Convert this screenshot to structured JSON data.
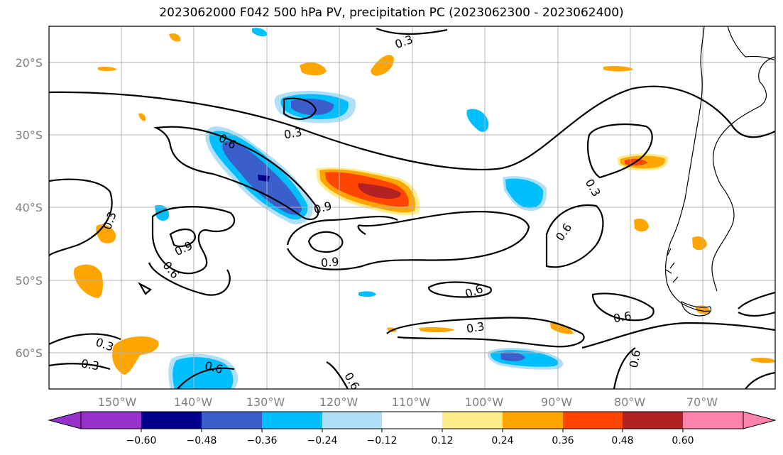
{
  "title": "2023062000 F042 500 hPa PV, precipitation PC (2023062300 - 2023062400)",
  "map": {
    "lon_labels": [
      "150°W",
      "140°W",
      "130°W",
      "120°W",
      "110°W",
      "100°W",
      "90°W",
      "80°W",
      "70°W"
    ],
    "lat_labels": [
      "20°S",
      "30°S",
      "40°S",
      "50°S",
      "60°S"
    ],
    "gridlines": true
  },
  "contour_labels": [
    "0.3",
    "0.3",
    "0.6",
    "0.9",
    "0.3",
    "0.3",
    "0.9",
    "0.6",
    "0.9",
    "0.6",
    "0.6",
    "0.3",
    "0.6",
    "0.6",
    "0.3",
    "0.3",
    "0.6",
    "0.6"
  ],
  "colorbar": {
    "ticks": [
      "−0.60",
      "−0.48",
      "−0.36",
      "−0.24",
      "−0.12",
      "0.12",
      "0.24",
      "0.36",
      "0.48",
      "0.60"
    ],
    "colors": [
      "#9932cc",
      "#00008b",
      "#3a5fcd",
      "#00bfff",
      "#b0e0f8",
      "#ffffff",
      "#ffffff",
      "#ffec8b",
      "#ffa500",
      "#ff4500",
      "#b22222",
      "#ff82ab"
    ]
  }
}
